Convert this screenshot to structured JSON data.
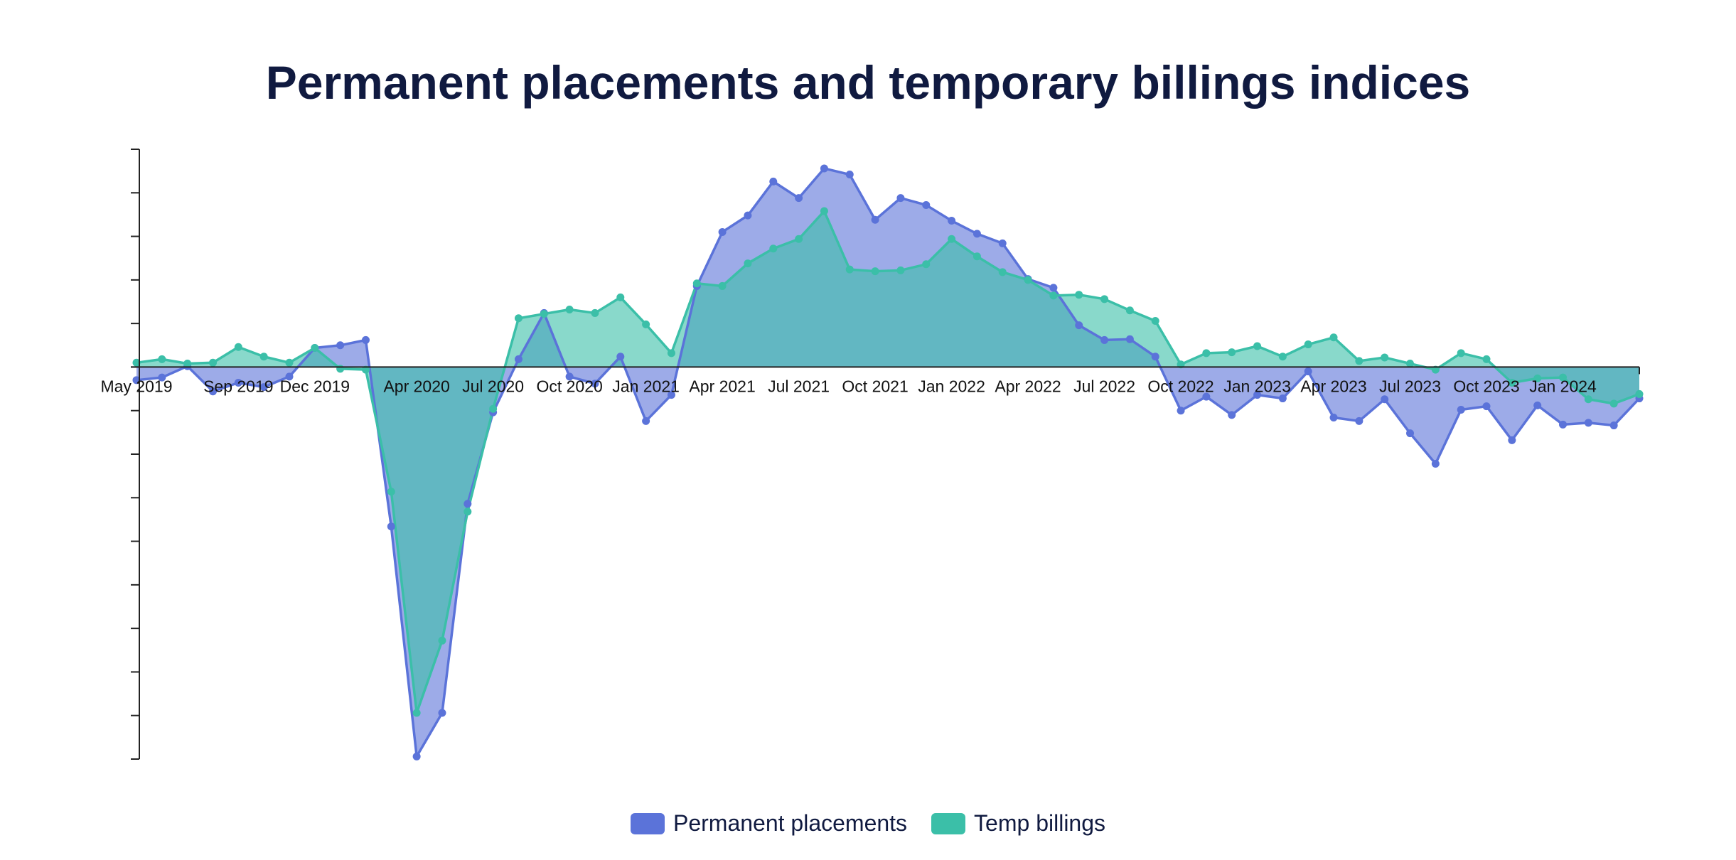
{
  "chart_data": {
    "type": "area",
    "title": "Permanent placements and temporary billings indices",
    "xlabel": "",
    "ylabel": "",
    "ylim": [
      -45,
      25
    ],
    "y_tick_step": 5,
    "y_tick_labels_shown": false,
    "baseline": 0,
    "x": [
      "2019-05",
      "2019-06",
      "2019-07",
      "2019-08",
      "2019-09",
      "2019-10",
      "2019-11",
      "2019-12",
      "2020-01",
      "2020-02",
      "2020-03",
      "2020-04",
      "2020-05",
      "2020-06",
      "2020-07",
      "2020-08",
      "2020-09",
      "2020-10",
      "2020-11",
      "2020-12",
      "2021-01",
      "2021-02",
      "2021-03",
      "2021-04",
      "2021-05",
      "2021-06",
      "2021-07",
      "2021-08",
      "2021-09",
      "2021-10",
      "2021-11",
      "2021-12",
      "2022-01",
      "2022-02",
      "2022-03",
      "2022-04",
      "2022-05",
      "2022-06",
      "2022-07",
      "2022-08",
      "2022-09",
      "2022-10",
      "2022-11",
      "2022-12",
      "2023-01",
      "2023-02",
      "2023-03",
      "2023-04",
      "2023-05",
      "2023-06",
      "2023-07",
      "2023-08",
      "2023-09",
      "2023-10",
      "2023-11",
      "2023-12",
      "2024-01",
      "2024-02",
      "2024-03",
      "2024-04"
    ],
    "x_tick_labels": [
      {
        "x": "2019-05",
        "label": "May 2019"
      },
      {
        "x": "2019-09",
        "label": "Sep 2019"
      },
      {
        "x": "2019-12",
        "label": "Dec 2019"
      },
      {
        "x": "2020-04",
        "label": "Apr 2020"
      },
      {
        "x": "2020-07",
        "label": "Jul 2020"
      },
      {
        "x": "2020-10",
        "label": "Oct 2020"
      },
      {
        "x": "2021-01",
        "label": "Jan 2021"
      },
      {
        "x": "2021-04",
        "label": "Apr 2021"
      },
      {
        "x": "2021-07",
        "label": "Jul 2021"
      },
      {
        "x": "2021-10",
        "label": "Oct 2021"
      },
      {
        "x": "2022-01",
        "label": "Jan 2022"
      },
      {
        "x": "2022-04",
        "label": "Apr 2022"
      },
      {
        "x": "2022-07",
        "label": "Jul 2022"
      },
      {
        "x": "2022-10",
        "label": "Oct 2022"
      },
      {
        "x": "2023-01",
        "label": "Jan 2023"
      },
      {
        "x": "2023-04",
        "label": "Apr 2023"
      },
      {
        "x": "2023-07",
        "label": "Jul 2023"
      },
      {
        "x": "2023-10",
        "label": "Oct 2023"
      },
      {
        "x": "2024-01",
        "label": "Jan 2024"
      }
    ],
    "series": [
      {
        "name": "Permanent placements",
        "color": "#5b73d9",
        "fill": "#5b73d9",
        "values": [
          -1.5,
          -1.2,
          0.1,
          -2.8,
          -1.8,
          -2.3,
          -1.1,
          2.2,
          2.5,
          3.1,
          -18.3,
          -44.7,
          -39.7,
          -15.7,
          -5.2,
          0.9,
          6.2,
          -1.1,
          -1.9,
          1.2,
          -6.2,
          -3.2,
          9.3,
          15.5,
          17.4,
          21.3,
          19.4,
          22.8,
          22.1,
          16.9,
          19.4,
          18.6,
          16.8,
          15.3,
          14.2,
          10.1,
          9.1,
          4.8,
          3.1,
          3.2,
          1.2,
          -5.0,
          -3.4,
          -5.5,
          -3.2,
          -3.6,
          -0.5,
          -5.8,
          -6.2,
          -3.7,
          -7.6,
          -11.1,
          -4.9,
          -4.5,
          -8.4,
          -4.4,
          -6.6,
          -6.4,
          -6.7,
          -3.6
        ]
      },
      {
        "name": "Temp billings",
        "color": "#3bbfa8",
        "fill": "#3bbfa8",
        "values": [
          0.5,
          0.9,
          0.4,
          0.5,
          2.3,
          1.2,
          0.5,
          2.2,
          -0.2,
          -0.3,
          -14.3,
          -39.7,
          -31.4,
          -16.6,
          -4.8,
          5.6,
          6.1,
          6.6,
          6.2,
          8.0,
          4.9,
          1.6,
          9.6,
          9.3,
          11.9,
          13.6,
          14.7,
          17.9,
          11.2,
          11.0,
          11.1,
          11.8,
          14.7,
          12.7,
          10.9,
          10.0,
          8.2,
          8.3,
          7.8,
          6.5,
          5.3,
          0.3,
          1.6,
          1.7,
          2.4,
          1.2,
          2.6,
          3.4,
          0.7,
          1.1,
          0.4,
          -0.3,
          1.6,
          0.9,
          -1.8,
          -1.3,
          -1.2,
          -3.7,
          -4.2,
          -3.1
        ]
      }
    ],
    "legend": {
      "position": "bottom"
    },
    "grid": false
  }
}
